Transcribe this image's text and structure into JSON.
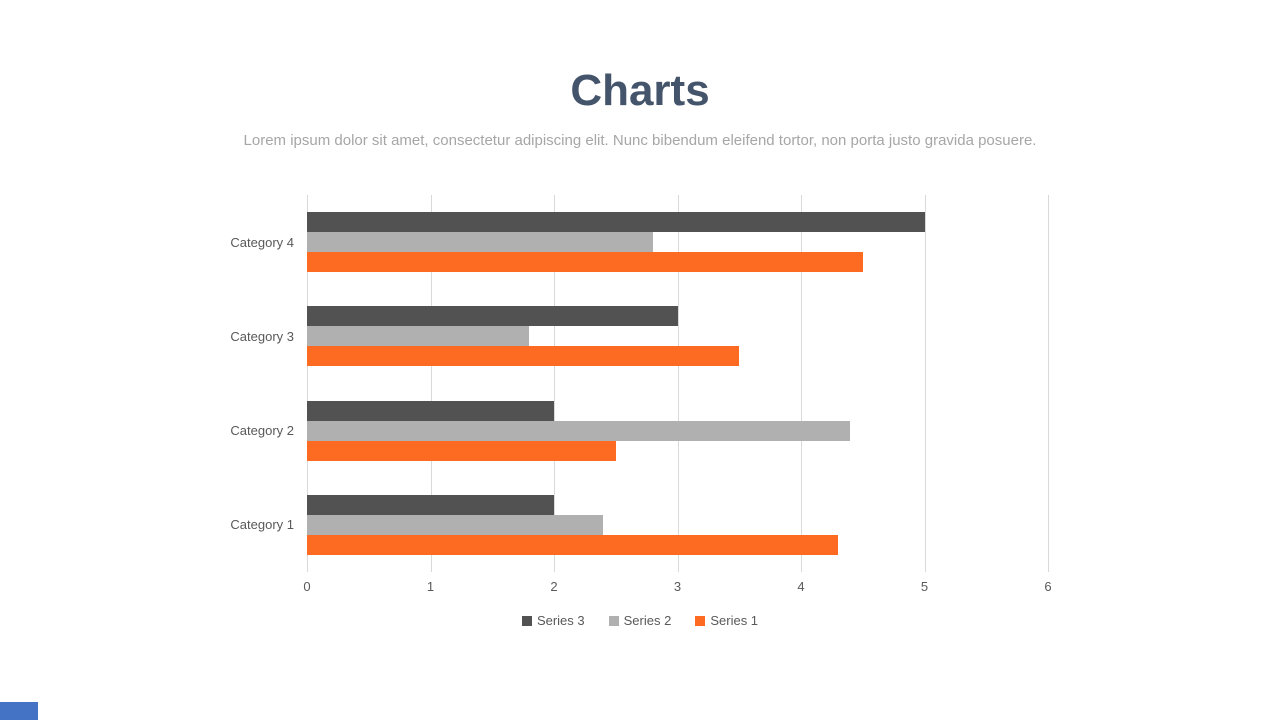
{
  "slide": {
    "title": "Charts",
    "subtitle": "Lorem ipsum dolor sit amet, consectetur adipiscing elit. Nunc bibendum eleifend tortor, non porta justo gravida posuere."
  },
  "colors": {
    "title_text": "#44546A",
    "subtitle_text": "#A6A6A6",
    "axis_text": "#595959",
    "gridline": "#D9D9D9",
    "corner_accent": "#4472C4"
  },
  "chart_data": {
    "type": "bar",
    "orientation": "horizontal",
    "categories": [
      "Category 1",
      "Category 2",
      "Category 3",
      "Category 4"
    ],
    "series": [
      {
        "name": "Series 1",
        "color": "#FD6A21",
        "values": [
          4.3,
          2.5,
          3.5,
          4.5
        ]
      },
      {
        "name": "Series 2",
        "color": "#B0B0B0",
        "values": [
          2.4,
          4.4,
          1.8,
          2.8
        ]
      },
      {
        "name": "Series 3",
        "color": "#525252",
        "values": [
          2.0,
          2.0,
          3.0,
          5.0
        ]
      }
    ],
    "xlim": [
      0,
      6
    ],
    "x_ticks": [
      0,
      1,
      2,
      3,
      4,
      5,
      6
    ],
    "legend_order": [
      "Series 3",
      "Series 2",
      "Series 1"
    ],
    "legend_position": "bottom",
    "grid": "vertical-only",
    "title": "Charts",
    "xlabel": "",
    "ylabel": ""
  }
}
